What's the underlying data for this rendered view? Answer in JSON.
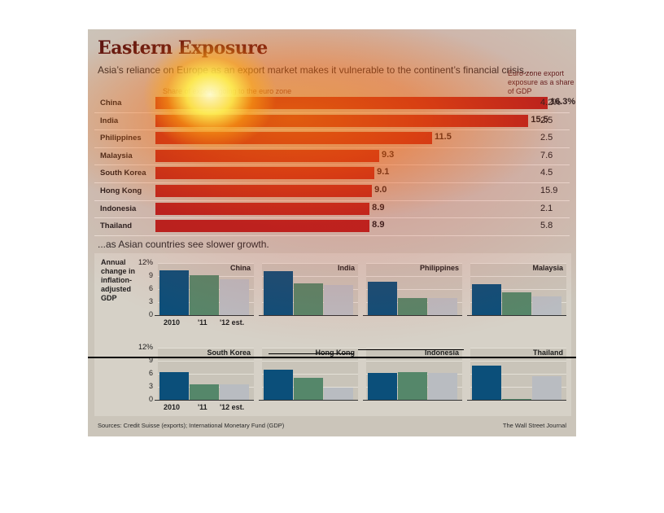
{
  "title": "Eastern Exposure",
  "subtitle": "Asia’s reliance on Europe as an export market makes it vulnerable to the continent’s financial crisis...",
  "side_header": "Euro-zone export exposure as a share of GDP",
  "bar_axis_label": "Share of exports going to the euro zone",
  "section2_title": "...as Asian countries see slower growth.",
  "gdp_ylabel": "Annual change in inflation-adjusted GDP",
  "sources": "Sources: Credit Suisse (exports); International Monetary Fund (GDP)",
  "credit": "The Wall Street Journal",
  "colors": {
    "bar": "#b5201e",
    "s2010": "#0b4f7a",
    "s2011": "#55876a",
    "s2012": "#b9bcc1"
  },
  "chart_data": [
    {
      "type": "bar",
      "orientation": "horizontal",
      "title": "Share of exports going to the euro zone",
      "categories": [
        "China",
        "India",
        "Philippines",
        "Malaysia",
        "South Korea",
        "Hong Kong",
        "Indonesia",
        "Thailand"
      ],
      "values": [
        16.3,
        15.5,
        11.5,
        9.3,
        9.1,
        9.0,
        8.9,
        8.9
      ],
      "value_labels": [
        "16.3%",
        "15.5",
        "11.5",
        "9.3",
        "9.1",
        "9.0",
        "8.9",
        "8.9"
      ],
      "side_column_title": "Euro-zone export exposure as a share of GDP",
      "side_values": [
        "4.2%",
        "2.5",
        "2.5",
        "7.6",
        "4.5",
        "15.9",
        "2.1",
        "5.8"
      ]
    },
    {
      "type": "bar",
      "title": "...as Asian countries see slower growth.",
      "ylabel": "Annual change in inflation-adjusted GDP",
      "ylim": [
        0,
        12
      ],
      "yticks": [
        "12%",
        "9",
        "6",
        "3",
        "0"
      ],
      "x_labels": [
        "2010",
        "'11",
        "'12 est."
      ],
      "panels": [
        {
          "name": "China",
          "values": [
            10.4,
            9.2,
            8.3
          ]
        },
        {
          "name": "India",
          "values": [
            10.1,
            7.3,
            7.0
          ]
        },
        {
          "name": "Philippines",
          "values": [
            7.6,
            3.9,
            4.0
          ]
        },
        {
          "name": "Malaysia",
          "values": [
            7.2,
            5.2,
            4.4
          ]
        },
        {
          "name": "South Korea",
          "values": [
            6.3,
            3.6,
            3.5
          ]
        },
        {
          "name": "Hong Kong",
          "values": [
            7.0,
            5.0,
            2.8
          ]
        },
        {
          "name": "Indonesia",
          "values": [
            6.2,
            6.4,
            6.1
          ]
        },
        {
          "name": "Thailand",
          "values": [
            7.8,
            0.1,
            5.5
          ]
        }
      ]
    }
  ]
}
